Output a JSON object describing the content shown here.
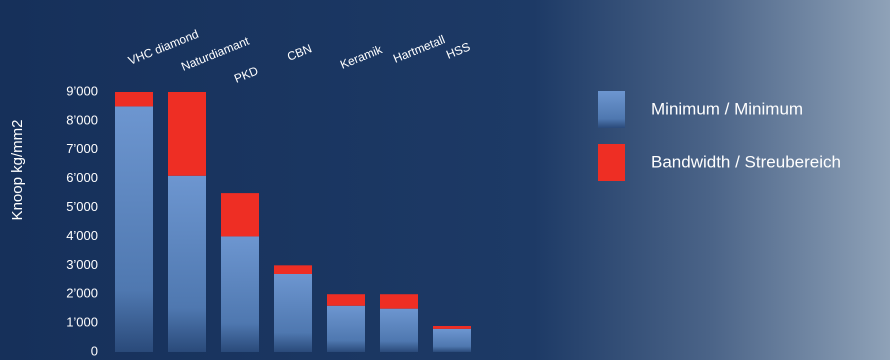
{
  "chart_data": {
    "type": "stacked-bar",
    "y_label": "Knoop kg/mm2",
    "categories": [
      "VHC diamond",
      "Naturdiamant",
      "PKD",
      "CBN",
      "Keramik",
      "Hartmetall",
      "HSS"
    ],
    "series": [
      {
        "name": "Minimum / Minimum",
        "color": "#6d96d0",
        "values": [
          8500,
          6100,
          4000,
          2700,
          1600,
          1500,
          800
        ]
      },
      {
        "name": "Bandwidth / Streubereich",
        "color": "#ee2e24",
        "values": [
          500,
          2900,
          1500,
          300,
          400,
          500,
          100
        ]
      }
    ],
    "ylim": [
      0,
      9000
    ],
    "yticks": [
      0,
      {
        "value": 1000,
        "label": "1’000"
      },
      {
        "value": 2000,
        "label": "2’000"
      },
      {
        "value": 3000,
        "label": "3’000"
      },
      {
        "value": 4000,
        "label": "4’000"
      },
      {
        "value": 5000,
        "label": "5’000"
      },
      {
        "value": 6000,
        "label": "6’000"
      },
      {
        "value": 7000,
        "label": "7’000"
      },
      {
        "value": 8000,
        "label": "8’000"
      },
      {
        "value": 9000,
        "label": "9’000"
      }
    ],
    "grid": false
  }
}
